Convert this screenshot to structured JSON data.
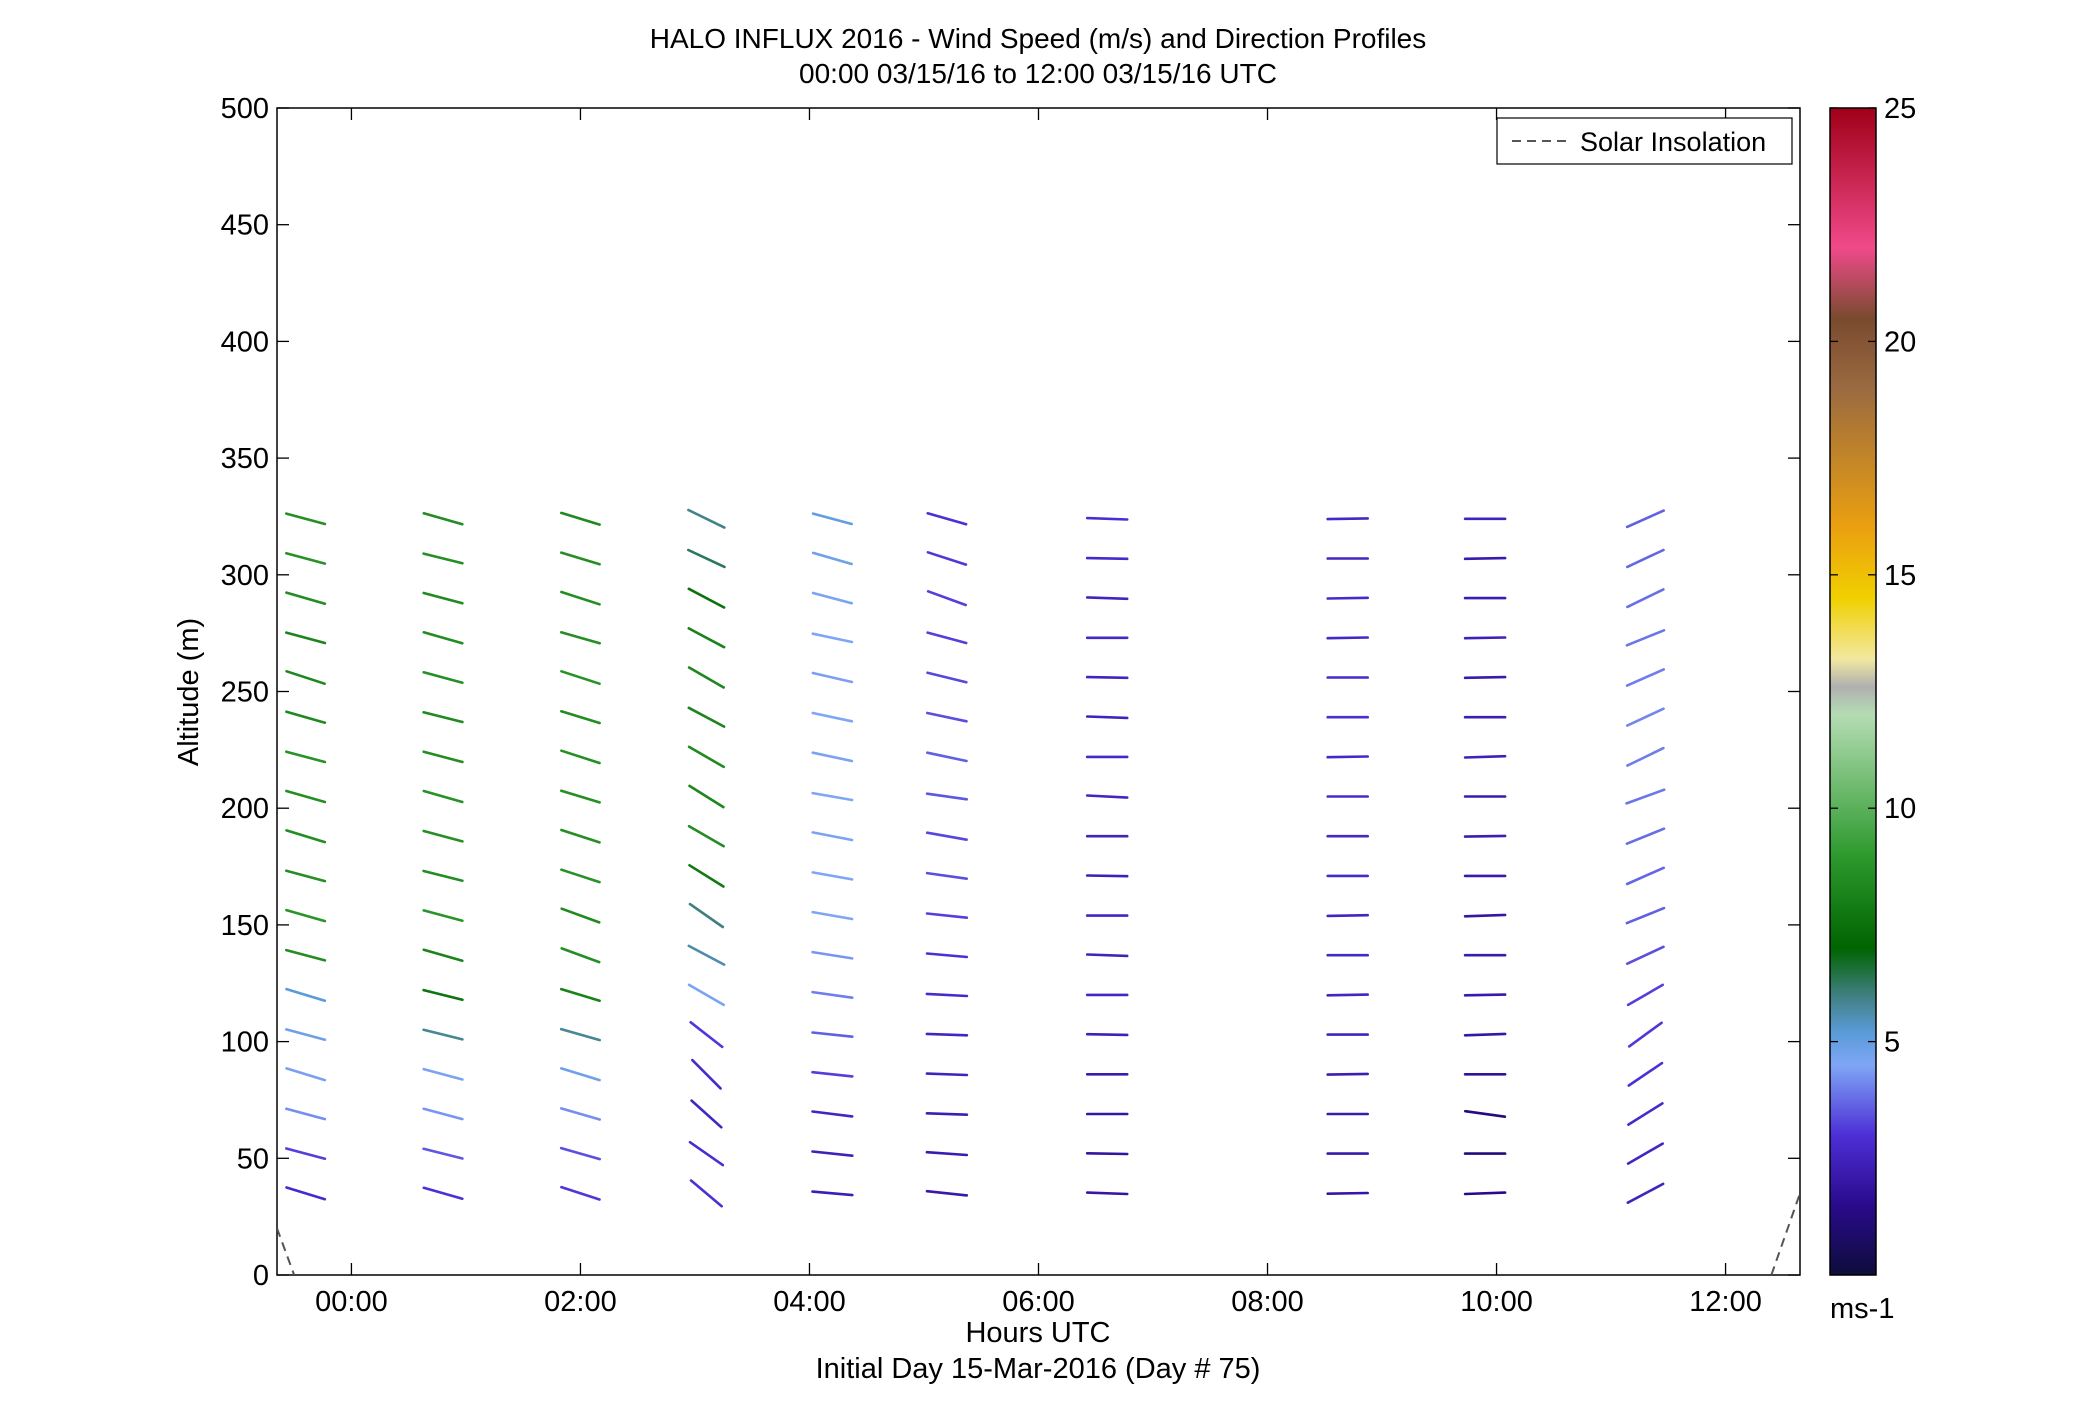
{
  "chart_data": {
    "type": "wind-barb-profile",
    "title": "HALO INFLUX 2016 - Wind Speed (m/s) and Direction Profiles",
    "subtitle": "00:00 03/15/16 to 12:00 03/15/16  UTC",
    "xlabel": "Hours UTC",
    "xlabel2": "Initial Day 15-Mar-2016 (Day # 75)",
    "ylabel": "Altitude (m)",
    "xlim": [
      -0.65,
      12.65
    ],
    "ylim": [
      0,
      500
    ],
    "x_tick_values": [
      0,
      2,
      4,
      6,
      8,
      10,
      12
    ],
    "x_tick_labels": [
      "00:00",
      "02:00",
      "04:00",
      "06:00",
      "08:00",
      "10:00",
      "12:00"
    ],
    "y_tick_values": [
      0,
      50,
      100,
      150,
      200,
      250,
      300,
      350,
      400,
      450,
      500
    ],
    "y_tick_labels": [
      "0",
      "50",
      "100",
      "150",
      "200",
      "250",
      "300",
      "350",
      "400",
      "450",
      "500"
    ],
    "legend": {
      "entries": [
        "Solar Insolation"
      ],
      "position": "top-right",
      "line_style": "dashed",
      "line_color": "#555555"
    },
    "colorbar": {
      "label": "ms-1",
      "range": [
        0,
        25
      ],
      "tick_values": [
        5,
        10,
        15,
        20,
        25
      ],
      "tick_labels": [
        "5",
        "10",
        "15",
        "20",
        "25"
      ],
      "stops": [
        {
          "v": 0,
          "c": "#0d0d3a"
        },
        {
          "v": 1.5,
          "c": "#2a0a8c"
        },
        {
          "v": 3,
          "c": "#4d2fd6"
        },
        {
          "v": 4.5,
          "c": "#7fa6f5"
        },
        {
          "v": 5.2,
          "c": "#5a9bd8"
        },
        {
          "v": 6,
          "c": "#3f7f7f"
        },
        {
          "v": 7,
          "c": "#006400"
        },
        {
          "v": 9,
          "c": "#2e9a2e"
        },
        {
          "v": 12,
          "c": "#b4dcb4"
        },
        {
          "v": 12.6,
          "c": "#b0b0b0"
        },
        {
          "v": 13.2,
          "c": "#f2e8a0"
        },
        {
          "v": 14.5,
          "c": "#f0d000"
        },
        {
          "v": 16,
          "c": "#eba010"
        },
        {
          "v": 19,
          "c": "#9a6a40"
        },
        {
          "v": 20.5,
          "c": "#7a4a30"
        },
        {
          "v": 22,
          "c": "#f04a8a"
        },
        {
          "v": 25,
          "c": "#a00018"
        }
      ]
    },
    "solar_insolation": {
      "segments": [
        {
          "x": [
            -0.65,
            -0.5
          ],
          "y": [
            20,
            0
          ]
        },
        {
          "x": [
            12.4,
            12.65
          ],
          "y": [
            0,
            35
          ]
        }
      ]
    },
    "series": [
      {
        "x": -0.4,
        "y_start": 35,
        "y_step": 17,
        "angle_deg": [
          -17,
          -15,
          -15,
          -17,
          -15,
          -17,
          -15,
          -16,
          -15,
          -17,
          -16,
          -15,
          -16,
          -18,
          -15,
          -16,
          -15,
          -15
        ],
        "speed": [
          2.8,
          3.2,
          4.2,
          4.4,
          4.8,
          5.2,
          8.5,
          8.8,
          8.6,
          8.5,
          8.6,
          8.7,
          8.4,
          8.3,
          8.2,
          8.5,
          8.7,
          8.6
        ]
      },
      {
        "x": 0.8,
        "y_start": 35,
        "y_step": 17,
        "angle_deg": [
          -16,
          -14,
          -15,
          -15,
          -14,
          -14,
          -16,
          -15,
          -14,
          -15,
          -16,
          -15,
          -14,
          -15,
          -16,
          -15,
          -14,
          -16
        ],
        "speed": [
          3.0,
          3.5,
          4.3,
          4.6,
          5.8,
          7.6,
          8.2,
          8.8,
          8.5,
          8.6,
          8.7,
          8.5,
          8.4,
          8.6,
          8.5,
          8.4,
          8.6,
          8.5
        ]
      },
      {
        "x": 2.0,
        "y_start": 35,
        "y_step": 17,
        "angle_deg": [
          -18,
          -16,
          -16,
          -17,
          -16,
          -17,
          -20,
          -20,
          -18,
          -18,
          -17,
          -18,
          -17,
          -18,
          -16,
          -18,
          -17,
          -17
        ],
        "speed": [
          3.1,
          3.4,
          4.2,
          4.8,
          5.8,
          8.1,
          8.6,
          8.4,
          8.7,
          8.6,
          8.6,
          8.6,
          8.5,
          8.7,
          8.6,
          8.5,
          8.6,
          8.4
        ]
      },
      {
        "x": 3.1,
        "y_start": 35,
        "y_step": 17,
        "angle_deg": [
          -40,
          -35,
          -42,
          -45,
          -38,
          -30,
          -28,
          -35,
          -32,
          -30,
          -32,
          -30,
          -28,
          -30,
          -28,
          -28,
          -25,
          -26
        ],
        "speed": [
          3.0,
          2.9,
          2.6,
          2.8,
          3.1,
          4.6,
          5.6,
          6.0,
          7.8,
          8.5,
          8.3,
          8.4,
          8.2,
          8.3,
          8.1,
          7.5,
          6.3,
          5.9
        ]
      },
      {
        "x": 4.2,
        "y_start": 35,
        "y_step": 17,
        "angle_deg": [
          -5,
          -6,
          -7,
          -6,
          -6,
          -8,
          -9,
          -10,
          -10,
          -11,
          -10,
          -12,
          -12,
          -13,
          -12,
          -15,
          -16,
          -15
        ],
        "speed": [
          2.3,
          2.4,
          2.6,
          3.2,
          3.6,
          4.0,
          4.3,
          4.5,
          4.5,
          4.6,
          4.5,
          4.6,
          4.5,
          4.4,
          4.5,
          4.6,
          4.8,
          5.0
        ]
      },
      {
        "x": 5.2,
        "y_start": 35,
        "y_step": 17,
        "angle_deg": [
          -6,
          -4,
          -2,
          -2,
          -2,
          -3,
          -5,
          -6,
          -8,
          -10,
          -8,
          -12,
          -12,
          -14,
          -15,
          -20,
          -18,
          -16
        ],
        "speed": [
          2.1,
          2.2,
          2.3,
          2.5,
          2.6,
          2.8,
          3.0,
          3.2,
          3.4,
          3.3,
          3.5,
          3.6,
          3.4,
          3.3,
          3.2,
          3.2,
          3.1,
          3.0
        ]
      },
      {
        "x": 6.6,
        "y_start": 35,
        "y_step": 17,
        "angle_deg": [
          -2,
          -1,
          0,
          0,
          -1,
          0,
          -2,
          0,
          -1,
          0,
          -3,
          0,
          -2,
          -1,
          0,
          -2,
          -1,
          -2
        ],
        "speed": [
          2.0,
          1.9,
          2.0,
          2.2,
          2.4,
          2.6,
          2.5,
          2.6,
          2.4,
          2.5,
          2.6,
          2.7,
          2.5,
          2.6,
          2.7,
          2.6,
          2.8,
          2.9
        ]
      },
      {
        "x": 8.7,
        "y_start": 35,
        "y_step": 17,
        "angle_deg": [
          1,
          0,
          0,
          1,
          0,
          1,
          0,
          1,
          0,
          0,
          0,
          1,
          0,
          0,
          1,
          1,
          0,
          1
        ],
        "speed": [
          2.0,
          2.1,
          2.2,
          2.3,
          2.5,
          2.6,
          2.7,
          2.6,
          2.8,
          2.7,
          2.8,
          2.7,
          2.9,
          2.8,
          2.7,
          2.8,
          2.6,
          2.7
        ]
      },
      {
        "x": 9.9,
        "y_start": 35,
        "y_step": 17,
        "angle_deg": [
          2,
          0,
          -8,
          0,
          2,
          1,
          0,
          2,
          0,
          1,
          0,
          2,
          0,
          1,
          1,
          0,
          1,
          0
        ],
        "speed": [
          1.5,
          1.2,
          1.3,
          1.8,
          2.0,
          2.1,
          2.2,
          2.0,
          2.1,
          2.3,
          2.2,
          2.4,
          2.3,
          2.2,
          2.4,
          2.3,
          2.2,
          2.5
        ]
      },
      {
        "x": 11.3,
        "y_start": 35,
        "y_step": 17,
        "angle_deg": [
          28,
          30,
          32,
          34,
          36,
          30,
          25,
          22,
          24,
          22,
          20,
          26,
          25,
          24,
          22,
          26,
          25,
          24
        ],
        "speed": [
          2.5,
          2.6,
          2.8,
          3.0,
          3.1,
          3.2,
          3.4,
          3.6,
          3.7,
          3.8,
          3.9,
          4.0,
          4.1,
          4.0,
          3.9,
          3.8,
          3.7,
          3.6
        ]
      }
    ]
  }
}
